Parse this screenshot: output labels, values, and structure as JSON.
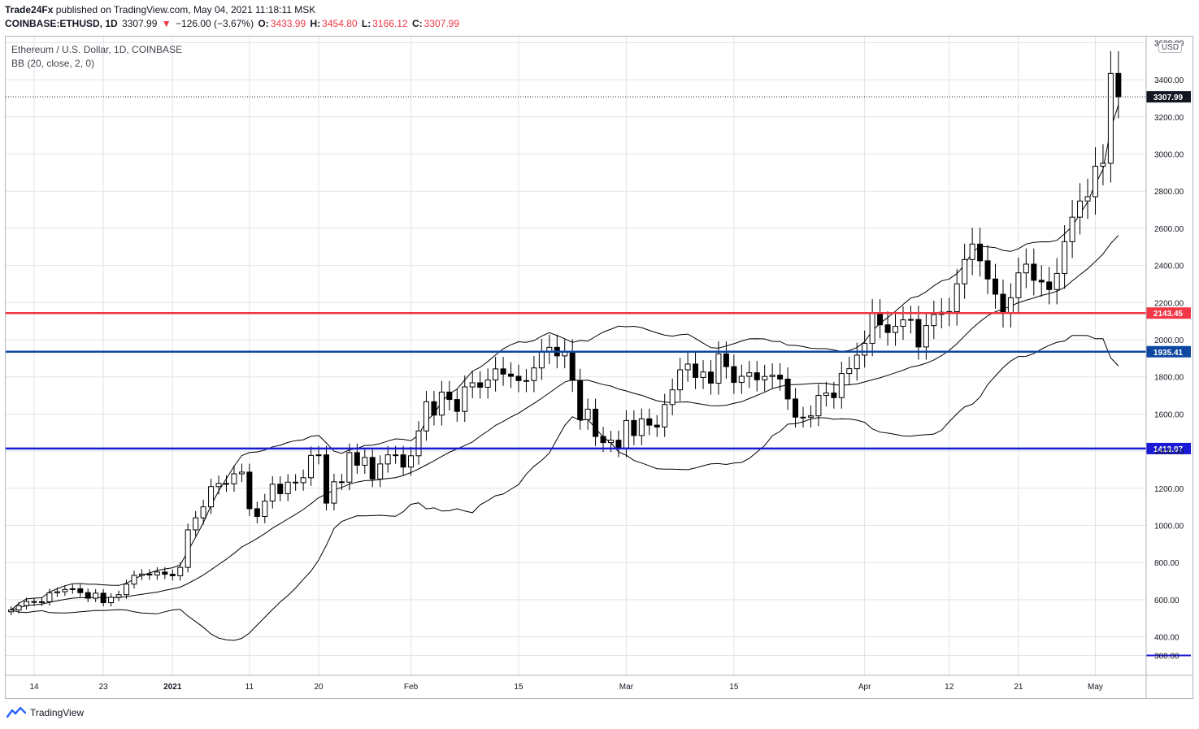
{
  "header": {
    "author": "Trade24Fx",
    "published": "published on TradingView.com, May 04, 2021 11:18:11 MSK",
    "symbol": "COINBASE:ETHUSD, 1D",
    "last": "3307.99",
    "change_arrow": "▼",
    "change": "−126.00 (−3.67%)",
    "o_label": "O:",
    "o": "3433.99",
    "h_label": "H:",
    "h": "3454.80",
    "l_label": "L:",
    "l": "3166.12",
    "c_label": "C:",
    "c": "3307.99"
  },
  "legend": {
    "title": "Ethereum / U.S. Dollar, 1D, COINBASE",
    "indicator": "BB (20, close, 2, 0)"
  },
  "footer": {
    "brand": "TradingView",
    "icon": "tradingview-logo-icon"
  },
  "colors": {
    "red_line": "#f23645",
    "blue_line_dark": "#0d47a1",
    "blue_line": "#1a1ad6",
    "candle": "#000000",
    "grid": "#e0e3eb"
  },
  "chart_data": {
    "type": "candlestick",
    "currency_label": "USD",
    "y_ticks": [
      300,
      400,
      600,
      800,
      1000,
      1200,
      1400,
      1600,
      1800,
      2000,
      2200,
      2400,
      2600,
      2800,
      3000,
      3200,
      3400,
      3600
    ],
    "y_tick_labels": [
      "300.00",
      "400.00",
      "600.00",
      "800.00",
      "1000.00",
      "1200.00",
      "1400.00",
      "1600.00",
      "1800.00",
      "2000.00",
      "2200.00",
      "2400.00",
      "2600.00",
      "2800.00",
      "3000.00",
      "3200.00",
      "3400.00",
      "3600.00"
    ],
    "x_ticks": [
      {
        "date": "2020-12-14",
        "label": "14"
      },
      {
        "date": "2020-12-23",
        "label": "23"
      },
      {
        "date": "2021-01-01",
        "label": "2021"
      },
      {
        "date": "2021-01-11",
        "label": "11"
      },
      {
        "date": "2021-01-20",
        "label": "20"
      },
      {
        "date": "2021-02-01",
        "label": "Feb"
      },
      {
        "date": "2021-02-15",
        "label": "15"
      },
      {
        "date": "2021-03-01",
        "label": "Mar"
      },
      {
        "date": "2021-03-15",
        "label": "15"
      },
      {
        "date": "2021-04-01",
        "label": "Apr"
      },
      {
        "date": "2021-04-12",
        "label": "12"
      },
      {
        "date": "2021-04-21",
        "label": "21"
      },
      {
        "date": "2021-05-01",
        "label": "May"
      }
    ],
    "horizontal_lines": [
      {
        "value": 2143.45,
        "label": "2143.45",
        "color": "#f23645"
      },
      {
        "value": 1935.41,
        "label": "1935.41",
        "color": "#0d47a1"
      },
      {
        "value": 1413.97,
        "label": "1413.97",
        "color": "#1a1ad6"
      }
    ],
    "last_price": {
      "value": 3307.99,
      "label": "3307.99"
    },
    "dates": [
      "2020-12-11",
      "2020-12-12",
      "2020-12-13",
      "2020-12-14",
      "2020-12-15",
      "2020-12-16",
      "2020-12-17",
      "2020-12-18",
      "2020-12-19",
      "2020-12-20",
      "2020-12-21",
      "2020-12-22",
      "2020-12-23",
      "2020-12-24",
      "2020-12-25",
      "2020-12-26",
      "2020-12-27",
      "2020-12-28",
      "2020-12-29",
      "2020-12-30",
      "2020-12-31",
      "2021-01-01",
      "2021-01-02",
      "2021-01-03",
      "2021-01-04",
      "2021-01-05",
      "2021-01-06",
      "2021-01-07",
      "2021-01-08",
      "2021-01-09",
      "2021-01-10",
      "2021-01-11",
      "2021-01-12",
      "2021-01-13",
      "2021-01-14",
      "2021-01-15",
      "2021-01-16",
      "2021-01-17",
      "2021-01-18",
      "2021-01-19",
      "2021-01-20",
      "2021-01-21",
      "2021-01-22",
      "2021-01-23",
      "2021-01-24",
      "2021-01-25",
      "2021-01-26",
      "2021-01-27",
      "2021-01-28",
      "2021-01-29",
      "2021-01-30",
      "2021-01-31",
      "2021-02-01",
      "2021-02-02",
      "2021-02-03",
      "2021-02-04",
      "2021-02-05",
      "2021-02-06",
      "2021-02-07",
      "2021-02-08",
      "2021-02-09",
      "2021-02-10",
      "2021-02-11",
      "2021-02-12",
      "2021-02-13",
      "2021-02-14",
      "2021-02-15",
      "2021-02-16",
      "2021-02-17",
      "2021-02-18",
      "2021-02-19",
      "2021-02-20",
      "2021-02-21",
      "2021-02-22",
      "2021-02-23",
      "2021-02-24",
      "2021-02-25",
      "2021-02-26",
      "2021-02-27",
      "2021-02-28",
      "2021-03-01",
      "2021-03-02",
      "2021-03-03",
      "2021-03-04",
      "2021-03-05",
      "2021-03-06",
      "2021-03-07",
      "2021-03-08",
      "2021-03-09",
      "2021-03-10",
      "2021-03-11",
      "2021-03-12",
      "2021-03-13",
      "2021-03-14",
      "2021-03-15",
      "2021-03-16",
      "2021-03-17",
      "2021-03-18",
      "2021-03-19",
      "2021-03-20",
      "2021-03-21",
      "2021-03-22",
      "2021-03-23",
      "2021-03-24",
      "2021-03-25",
      "2021-03-26",
      "2021-03-27",
      "2021-03-28",
      "2021-03-29",
      "2021-03-30",
      "2021-03-31",
      "2021-04-01",
      "2021-04-02",
      "2021-04-03",
      "2021-04-04",
      "2021-04-05",
      "2021-04-06",
      "2021-04-07",
      "2021-04-08",
      "2021-04-09",
      "2021-04-10",
      "2021-04-11",
      "2021-04-12",
      "2021-04-13",
      "2021-04-14",
      "2021-04-15",
      "2021-04-16",
      "2021-04-17",
      "2021-04-18",
      "2021-04-19",
      "2021-04-20",
      "2021-04-21",
      "2021-04-22",
      "2021-04-23",
      "2021-04-24",
      "2021-04-25",
      "2021-04-26",
      "2021-04-27",
      "2021-04-28",
      "2021-04-29",
      "2021-04-30",
      "2021-05-01",
      "2021-05-02",
      "2021-05-03",
      "2021-05-04"
    ],
    "close": [
      545,
      568,
      590,
      587,
      589,
      637,
      643,
      655,
      659,
      638,
      608,
      635,
      584,
      613,
      627,
      684,
      731,
      738,
      733,
      749,
      737,
      729,
      774,
      976,
      1041,
      1100,
      1209,
      1226,
      1224,
      1278,
      1287,
      1090,
      1048,
      1131,
      1222,
      1171,
      1233,
      1230,
      1257,
      1377,
      1380,
      1120,
      1235,
      1233,
      1392,
      1324,
      1366,
      1250,
      1331,
      1380,
      1380,
      1314,
      1375,
      1509,
      1666,
      1594,
      1718,
      1678,
      1614,
      1746,
      1768,
      1744,
      1783,
      1843,
      1815,
      1803,
      1780,
      1780,
      1848,
      1937,
      1959,
      1913,
      1935,
      1781,
      1570,
      1626,
      1479,
      1446,
      1459,
      1417,
      1565,
      1484,
      1574,
      1540,
      1530,
      1651,
      1730,
      1838,
      1869,
      1797,
      1826,
      1766,
      1924,
      1855,
      1770,
      1803,
      1822,
      1784,
      1802,
      1809,
      1788,
      1681,
      1583,
      1583,
      1590,
      1700,
      1713,
      1688,
      1818,
      1844,
      1917,
      1980,
      2143,
      2080,
      2039,
      2072,
      2107,
      2109,
      1961,
      2076,
      2136,
      2148,
      2151,
      2301,
      2432,
      2515,
      2425,
      2327,
      2245,
      2140,
      2226,
      2360,
      2407,
      2320,
      2311,
      2270,
      2357,
      2528,
      2660,
      2747,
      2770,
      2934,
      2950,
      3434,
      3308
    ],
    "bollinger": {
      "basis_start": [
        650,
        1120
      ],
      "upper_end": 2592,
      "middle_end": 2960,
      "lower_end": 1898,
      "note_values_read_from_chart": true
    }
  }
}
